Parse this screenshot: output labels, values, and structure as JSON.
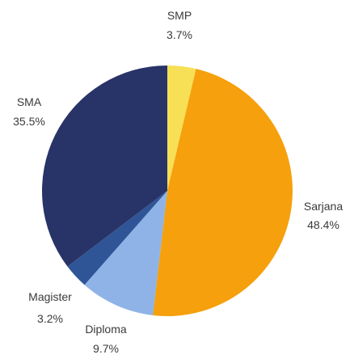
{
  "chart_data": {
    "type": "pie",
    "slices": [
      {
        "label": "SMP",
        "percent_label": "3.7%",
        "value": 3.7,
        "color": "#f7df56"
      },
      {
        "label": "Sarjana",
        "percent_label": "48.4%",
        "value": 48.4,
        "color": "#f5a00c"
      },
      {
        "label": "Diploma",
        "percent_label": "9.7%",
        "value": 9.7,
        "color": "#8fb3e6"
      },
      {
        "label": "Magister",
        "percent_label": "3.2%",
        "value": 3.2,
        "color": "#2f5597"
      },
      {
        "label": "SMA",
        "percent_label": "35.5%",
        "value": 35.5,
        "color": "#283467"
      }
    ],
    "start_angle_deg": 0,
    "direction": "clockwise",
    "legend": "none"
  }
}
